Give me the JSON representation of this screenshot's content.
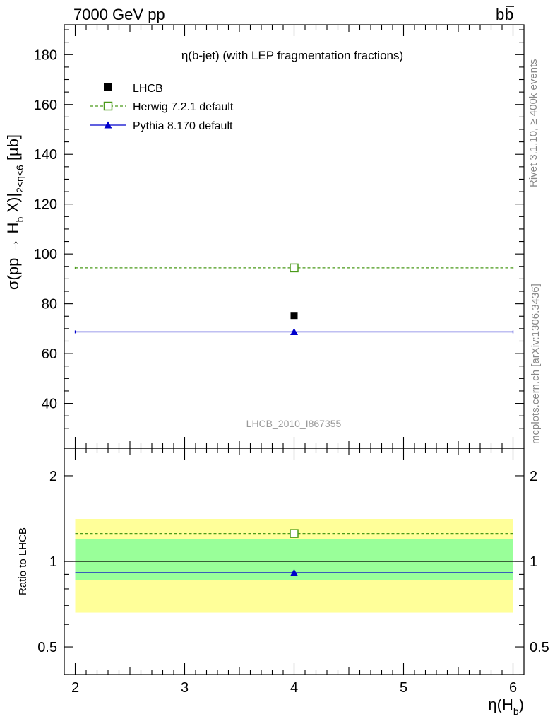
{
  "header": {
    "left": "7000 GeV pp",
    "right_main": "b",
    "right_bar": "b"
  },
  "side_text": {
    "top": "Rivet 3.1.10, ≥ 400k events",
    "bottom": "mcplots.cern.ch [arXiv:1306.3436]"
  },
  "chart_data": [
    {
      "type": "scatter",
      "title": "η(b-jet) (with LEP fragmentation fractions)",
      "analysis_label": "LHCB_2010_I867355",
      "ylabel": {
        "main": "σ(pp → H",
        "sub1": "b",
        "mid": " X)|",
        "sub2": "2<η<6",
        "unit": " [µb]"
      },
      "xlim": [
        1.9,
        6.1
      ],
      "ylim": [
        22,
        192
      ],
      "yticks": [
        40,
        60,
        80,
        100,
        120,
        140,
        160,
        180
      ],
      "xticks": [
        2,
        3,
        4,
        5,
        6
      ],
      "legend_placement": "top-left",
      "series": [
        {
          "name": "LHCB",
          "kind": "data",
          "color": "#000000",
          "marker": "filled-square",
          "x": [
            4
          ],
          "y": [
            75.3
          ]
        },
        {
          "name": "Herwig 7.2.1 default",
          "kind": "mc",
          "color": "#4a9a1a",
          "marker": "open-square",
          "line": "dashed",
          "x": [
            4
          ],
          "y": [
            94.4
          ],
          "xrange": [
            2,
            6
          ]
        },
        {
          "name": "Pythia 8.170 default",
          "kind": "mc",
          "color": "#0000cc",
          "marker": "filled-triangle",
          "line": "solid",
          "x": [
            4
          ],
          "y": [
            68.7
          ],
          "xrange": [
            2,
            6
          ]
        }
      ]
    },
    {
      "type": "scatter",
      "ylabel": "Ratio to LHCB",
      "xlabel": {
        "main": "η(H",
        "sub": "b",
        "close": ")"
      },
      "xlim": [
        1.9,
        6.1
      ],
      "ylim": [
        0.4,
        2.5
      ],
      "yscale": "log",
      "yticks": [
        0.5,
        1,
        2
      ],
      "ytick_labels": [
        "0.5",
        "1",
        "2"
      ],
      "xticks": [
        2,
        3,
        4,
        5,
        6
      ],
      "xtick_labels": [
        "2",
        "3",
        "4",
        "5",
        "6"
      ],
      "bands": [
        {
          "name": "outer",
          "color": "#ffff99",
          "low": 0.66,
          "high": 1.41,
          "xrange": [
            2,
            6
          ]
        },
        {
          "name": "inner",
          "color": "#99ff99",
          "low": 0.86,
          "high": 1.2,
          "xrange": [
            2,
            6
          ]
        }
      ],
      "reference": 1,
      "series": [
        {
          "name": "Herwig 7.2.1 default",
          "color": "#4a9a1a",
          "marker": "open-square",
          "line": "dashed",
          "x": [
            4
          ],
          "y": [
            1.253
          ],
          "xrange": [
            2,
            6
          ]
        },
        {
          "name": "Pythia 8.170 default",
          "color": "#0000cc",
          "marker": "filled-triangle",
          "line": "solid",
          "x": [
            4
          ],
          "y": [
            0.912
          ],
          "xrange": [
            2,
            6
          ]
        }
      ]
    }
  ]
}
